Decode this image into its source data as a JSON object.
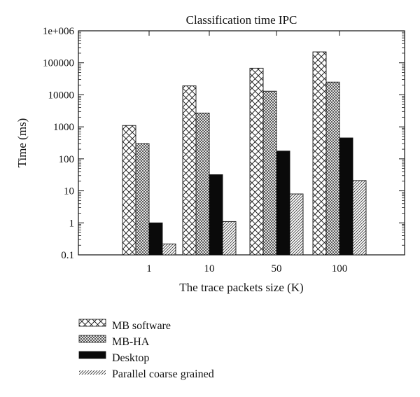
{
  "chart_data": {
    "type": "bar",
    "title": "Classification time IPC",
    "xlabel": "The trace packets size (K)",
    "ylabel": "Time (ms)",
    "yscale": "log",
    "ylim": [
      0.1,
      1000000
    ],
    "yticks": [
      "0.1",
      "1",
      "10",
      "100",
      "1000",
      "10000",
      "100000",
      "1e+006"
    ],
    "categories": [
      "1",
      "10",
      "50",
      "100"
    ],
    "series": [
      {
        "name": "MB software",
        "values": [
          1100,
          19000,
          68000,
          220000
        ],
        "pattern": "crosshatch"
      },
      {
        "name": "MB-HA",
        "values": [
          300,
          2700,
          13000,
          25000
        ],
        "pattern": "fine-crosshatch"
      },
      {
        "name": "Desktop",
        "values": [
          1,
          32,
          175,
          450
        ],
        "pattern": "solid"
      },
      {
        "name": "Parallel coarse grained",
        "values": [
          0.22,
          1.1,
          8,
          21
        ],
        "pattern": "diagonal"
      }
    ],
    "grid": false,
    "legend_position": "bottom-left-outside"
  },
  "colors": {
    "ink": "#111111",
    "background": "#ffffff"
  }
}
